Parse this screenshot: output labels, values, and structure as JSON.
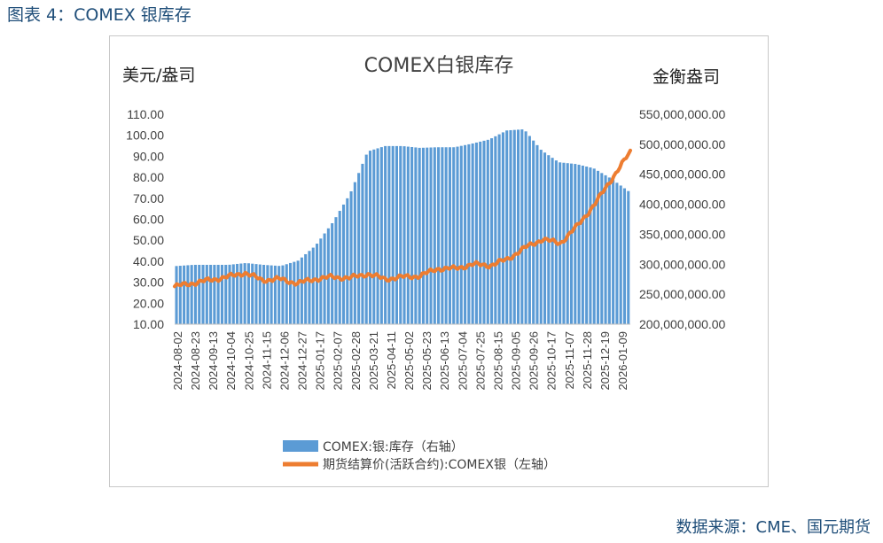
{
  "caption": "图表 4：COMEX 银库存",
  "source": "数据来源：CME、国元期货",
  "chart_data": {
    "type": "bar+line",
    "title": "COMEX白银库存",
    "ylabel_left": "美元/盎司",
    "ylabel_right": "金衡盎司",
    "ylim_left": [
      10,
      110
    ],
    "ylim_right": [
      200000000,
      550000000
    ],
    "left_ticks": [
      "10.00",
      "20.00",
      "30.00",
      "40.00",
      "50.00",
      "60.00",
      "70.00",
      "80.00",
      "90.00",
      "100.00",
      "110.00"
    ],
    "right_ticks": [
      "200,000,000.00",
      "250,000,000.00",
      "300,000,000.00",
      "350,000,000.00",
      "400,000,000.00",
      "450,000,000.00",
      "500,000,000.00",
      "550,000,000.00"
    ],
    "x_tick_labels": [
      "2024-08-02",
      "2024-08-23",
      "2024-09-13",
      "2024-10-04",
      "2024-10-25",
      "2024-11-15",
      "2024-12-06",
      "2024-12-27",
      "2025-01-17",
      "2025-02-07",
      "2025-02-28",
      "2025-03-21",
      "2025-04-11",
      "2025-05-02",
      "2025-05-23",
      "2025-06-13",
      "2025-07-04",
      "2025-07-25",
      "2025-08-15",
      "2025-09-05",
      "2025-09-26",
      "2025-10-17",
      "2025-11-07",
      "2025-11-28",
      "2025-12-19",
      "2026-01-09"
    ],
    "colors": {
      "bar": "#5b9bd5",
      "line": "#ed7d31"
    },
    "legend_position": "bottom",
    "series": [
      {
        "name": "COMEX:银:库存（右轴）",
        "axis": "right",
        "type": "bar",
        "x": [
          "2024-08-02",
          "2024-08-23",
          "2024-09-13",
          "2024-10-04",
          "2024-10-25",
          "2024-11-15",
          "2024-12-06",
          "2024-12-27",
          "2025-01-17",
          "2025-02-07",
          "2025-02-28",
          "2025-03-21",
          "2025-04-11",
          "2025-05-02",
          "2025-05-23",
          "2025-06-13",
          "2025-07-04",
          "2025-07-25",
          "2025-08-15",
          "2025-09-05",
          "2025-09-26",
          "2025-10-17",
          "2025-11-07",
          "2025-11-28",
          "2025-12-19",
          "2026-01-09",
          "2026-01-20"
        ],
        "values": [
          297000000,
          299000000,
          299000000,
          299000000,
          302000000,
          299000000,
          297000000,
          306000000,
          331000000,
          370000000,
          418000000,
          488000000,
          497000000,
          497000000,
          494000000,
          495000000,
          495000000,
          501000000,
          508000000,
          523000000,
          525000000,
          490000000,
          470000000,
          467000000,
          460000000,
          443000000,
          422000000
        ]
      },
      {
        "name": "期货结算价(活跃合约):COMEX银（左轴）",
        "axis": "left",
        "type": "line",
        "x": [
          "2024-08-02",
          "2024-08-23",
          "2024-09-13",
          "2024-10-04",
          "2024-10-25",
          "2024-11-15",
          "2024-12-06",
          "2024-12-27",
          "2025-01-17",
          "2025-02-07",
          "2025-02-28",
          "2025-03-21",
          "2025-04-11",
          "2025-05-02",
          "2025-05-23",
          "2025-06-13",
          "2025-07-04",
          "2025-07-25",
          "2025-08-15",
          "2025-09-05",
          "2025-09-26",
          "2025-10-17",
          "2025-11-07",
          "2025-11-28",
          "2025-12-19",
          "2026-01-09",
          "2026-01-20"
        ],
        "values": [
          28.0,
          29.5,
          31.0,
          32.5,
          34.5,
          31.0,
          31.5,
          29.5,
          31.5,
          32.5,
          32.0,
          34.0,
          31.5,
          32.5,
          33.0,
          36.5,
          36.5,
          38.5,
          38.0,
          41.0,
          46.5,
          50.5,
          48.5,
          57.0,
          67.5,
          80.0,
          92.0
        ]
      }
    ]
  }
}
